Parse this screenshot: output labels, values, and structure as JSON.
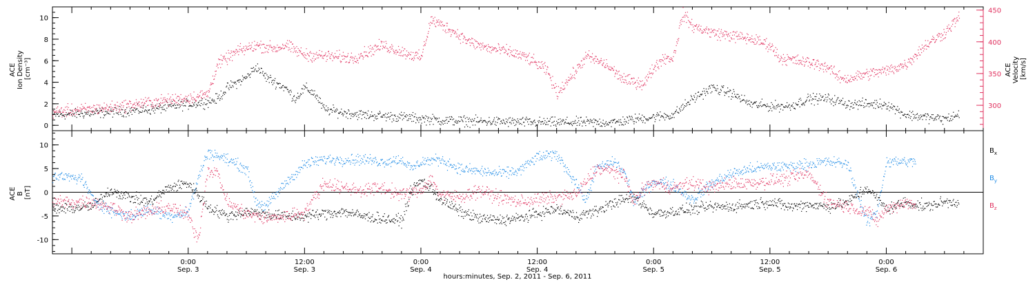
{
  "chart_data": [
    {
      "type": "scatter",
      "panel": "top",
      "left_axis": {
        "title_lines": [
          "ACE",
          "Ion Density",
          "[cm⁻³]"
        ],
        "ticks": [
          0,
          2,
          4,
          6,
          8,
          10
        ],
        "ylim": [
          -0.5,
          11.0
        ]
      },
      "right_axis": {
        "title_lines": [
          "ACE",
          "Velocity",
          "[km/s]"
        ],
        "ticks": [
          300,
          350,
          400,
          450
        ],
        "ylim": [
          260,
          455
        ],
        "color": "#e0305e"
      },
      "x_range_hours": [
        -14,
        82
      ],
      "series": [
        {
          "axis": "left",
          "color": "#000000",
          "anchors": [
            [
              -14,
              1.0
            ],
            [
              -9,
              1.2
            ],
            [
              -4,
              1.5
            ],
            [
              0,
              2.0
            ],
            [
              2,
              2.2
            ],
            [
              3,
              2.5
            ],
            [
              4,
              3.5
            ],
            [
              6,
              4.5
            ],
            [
              7,
              5.5
            ],
            [
              8,
              4.5
            ],
            [
              10,
              3.5
            ],
            [
              11,
              2.5
            ],
            [
              12,
              3.5
            ],
            [
              13,
              3.0
            ],
            [
              14,
              1.5
            ],
            [
              16,
              1.2
            ],
            [
              18,
              1.0
            ],
            [
              22,
              0.8
            ],
            [
              26,
              0.5
            ],
            [
              30,
              0.4
            ],
            [
              36,
              0.3
            ],
            [
              40,
              0.3
            ],
            [
              44,
              0.3
            ],
            [
              46,
              0.6
            ],
            [
              48,
              0.8
            ],
            [
              50,
              1.0
            ],
            [
              52,
              2.5
            ],
            [
              54,
              3.5
            ],
            [
              56,
              3.0
            ],
            [
              58,
              2.0
            ],
            [
              60,
              1.8
            ],
            [
              62,
              1.8
            ],
            [
              64,
              2.5
            ],
            [
              66,
              2.5
            ],
            [
              68,
              2.0
            ],
            [
              70,
              2.0
            ],
            [
              72,
              2.0
            ],
            [
              74,
              1.0
            ],
            [
              76,
              0.8
            ],
            [
              78,
              0.6
            ],
            [
              79.5,
              1.0
            ]
          ],
          "noise": 0.4
        },
        {
          "axis": "right",
          "color": "#e0305e",
          "anchors": [
            [
              -14,
              290
            ],
            [
              -8,
              297
            ],
            [
              -4,
              305
            ],
            [
              0,
              312
            ],
            [
              2,
              318
            ],
            [
              3,
              365
            ],
            [
              5,
              385
            ],
            [
              7,
              395
            ],
            [
              9,
              390
            ],
            [
              10,
              395
            ],
            [
              12,
              380
            ],
            [
              14,
              378
            ],
            [
              17,
              375
            ],
            [
              20,
              395
            ],
            [
              22,
              385
            ],
            [
              24,
              375
            ],
            [
              25,
              435
            ],
            [
              27,
              420
            ],
            [
              29,
              400
            ],
            [
              31,
              390
            ],
            [
              33,
              385
            ],
            [
              35,
              375
            ],
            [
              37,
              355
            ],
            [
              38,
              320
            ],
            [
              40,
              355
            ],
            [
              41,
              378
            ],
            [
              43,
              365
            ],
            [
              45,
              340
            ],
            [
              47,
              335
            ],
            [
              48,
              360
            ],
            [
              49,
              375
            ],
            [
              50,
              375
            ],
            [
              51,
              445
            ],
            [
              52,
              425
            ],
            [
              54,
              415
            ],
            [
              56,
              410
            ],
            [
              58,
              405
            ],
            [
              60,
              395
            ],
            [
              61,
              375
            ],
            [
              63,
              370
            ],
            [
              65,
              365
            ],
            [
              66,
              360
            ],
            [
              67,
              345
            ],
            [
              68,
              342
            ],
            [
              70,
              350
            ],
            [
              72,
              355
            ],
            [
              74,
              365
            ],
            [
              76,
              395
            ],
            [
              78,
              415
            ],
            [
              79.5,
              440
            ]
          ],
          "noise": 8
        }
      ]
    },
    {
      "type": "scatter",
      "panel": "bottom",
      "left_axis": {
        "title_lines": [
          "ACE",
          "B",
          "[nT]"
        ],
        "ticks": [
          -10,
          -5,
          0,
          5,
          10
        ],
        "ylim": [
          -13,
          13
        ]
      },
      "x_range_hours": [
        -14,
        82
      ],
      "zero_line": true,
      "xticks": [
        {
          "h": 0,
          "time": "0:00",
          "date": "Sep. 3"
        },
        {
          "h": 12,
          "time": "12:00",
          "date": "Sep. 3"
        },
        {
          "h": 24,
          "time": "0:00",
          "date": "Sep. 4"
        },
        {
          "h": 36,
          "time": "12:00",
          "date": "Sep. 4"
        },
        {
          "h": 48,
          "time": "0:00",
          "date": "Sep. 5"
        },
        {
          "h": 60,
          "time": "12:00",
          "date": "Sep. 5"
        },
        {
          "h": 72,
          "time": "0:00",
          "date": "Sep. 6"
        }
      ],
      "xlabel": "hours:minutes, Sep.  2, 2011 - Sep.  6, 2011",
      "series": [
        {
          "name": "Bx",
          "color": "#000000",
          "anchors": [
            [
              -14,
              -3.5
            ],
            [
              -10,
              -3.0
            ],
            [
              -8,
              0.5
            ],
            [
              -6,
              -1.0
            ],
            [
              -4,
              -2.0
            ],
            [
              -2,
              1.0
            ],
            [
              0,
              2.0
            ],
            [
              2,
              -3.0
            ],
            [
              4,
              -5.0
            ],
            [
              6,
              -4.0
            ],
            [
              8,
              -4.5
            ],
            [
              10,
              -5.0
            ],
            [
              12,
              -5.0
            ],
            [
              14,
              -4.5
            ],
            [
              16,
              -4.0
            ],
            [
              18,
              -5.0
            ],
            [
              20,
              -5.5
            ],
            [
              22,
              -6.0
            ],
            [
              23,
              0.5
            ],
            [
              24,
              2.5
            ],
            [
              25,
              1.0
            ],
            [
              26,
              -1.5
            ],
            [
              28,
              -4.0
            ],
            [
              30,
              -5.5
            ],
            [
              32,
              -5.8
            ],
            [
              34,
              -5.5
            ],
            [
              36,
              -4.5
            ],
            [
              38,
              -3.5
            ],
            [
              40,
              -5.0
            ],
            [
              42,
              -4.0
            ],
            [
              44,
              -2.0
            ],
            [
              46,
              -1.0
            ],
            [
              48,
              -4.5
            ],
            [
              50,
              -4.0
            ],
            [
              52,
              -3.5
            ],
            [
              54,
              -3.0
            ],
            [
              56,
              -3.0
            ],
            [
              58,
              -2.5
            ],
            [
              60,
              -2.0
            ],
            [
              62,
              -3.0
            ],
            [
              64,
              -2.5
            ],
            [
              66,
              -3.0
            ],
            [
              68,
              -2.0
            ],
            [
              70,
              1.0
            ],
            [
              72,
              -3.5
            ],
            [
              74,
              -2.0
            ],
            [
              76,
              -3.0
            ],
            [
              78,
              -2.0
            ],
            [
              79.5,
              -2.0
            ]
          ],
          "noise": 1.0
        },
        {
          "name": "By",
          "color": "#1e8be6",
          "anchors": [
            [
              -14,
              3.5
            ],
            [
              -11,
              3.0
            ],
            [
              -10,
              -1.0
            ],
            [
              -8,
              -4.0
            ],
            [
              -6,
              -5.0
            ],
            [
              -4,
              -3.5
            ],
            [
              -2,
              -5.0
            ],
            [
              0,
              -4.0
            ],
            [
              1,
              3.0
            ],
            [
              2,
              8.5
            ],
            [
              4,
              7.0
            ],
            [
              6,
              5.0
            ],
            [
              7,
              -2.0
            ],
            [
              8,
              -3.0
            ],
            [
              10,
              2.0
            ],
            [
              12,
              6.0
            ],
            [
              14,
              7.0
            ],
            [
              16,
              7.0
            ],
            [
              18,
              7.0
            ],
            [
              20,
              6.5
            ],
            [
              22,
              7.0
            ],
            [
              23,
              5.0
            ],
            [
              24,
              6.5
            ],
            [
              26,
              7.0
            ],
            [
              28,
              5.0
            ],
            [
              30,
              4.5
            ],
            [
              32,
              4.0
            ],
            [
              34,
              4.5
            ],
            [
              36,
              7.5
            ],
            [
              38,
              8.0
            ],
            [
              40,
              2.0
            ],
            [
              41,
              -2.0
            ],
            [
              42,
              5.0
            ],
            [
              44,
              6.5
            ],
            [
              45,
              4.0
            ],
            [
              46,
              -2.0
            ],
            [
              48,
              2.5
            ],
            [
              50,
              1.5
            ],
            [
              52,
              -1.5
            ],
            [
              54,
              2.0
            ],
            [
              56,
              4.0
            ],
            [
              58,
              5.0
            ],
            [
              60,
              5.5
            ],
            [
              62,
              5.5
            ],
            [
              64,
              6.0
            ],
            [
              66,
              6.5
            ],
            [
              68,
              6.0
            ],
            [
              70,
              -6.5
            ],
            [
              71,
              -4.0
            ],
            [
              72,
              6.5
            ],
            [
              74,
              6.5
            ],
            [
              75,
              6.5
            ]
          ],
          "noise": 1.0
        },
        {
          "name": "Bz",
          "color": "#e0305e",
          "anchors": [
            [
              -14,
              -2.0
            ],
            [
              -10,
              -2.0
            ],
            [
              -8,
              -3.0
            ],
            [
              -6,
              -5.0
            ],
            [
              -4,
              -4.0
            ],
            [
              -2,
              -3.0
            ],
            [
              0,
              -5.0
            ],
            [
              1,
              -10.0
            ],
            [
              2,
              5.0
            ],
            [
              3,
              4.0
            ],
            [
              4,
              -2.0
            ],
            [
              6,
              -4.5
            ],
            [
              8,
              -5.5
            ],
            [
              10,
              -5.0
            ],
            [
              12,
              -4.0
            ],
            [
              14,
              2.0
            ],
            [
              16,
              1.0
            ],
            [
              18,
              0.5
            ],
            [
              20,
              1.0
            ],
            [
              22,
              -0.5
            ],
            [
              24,
              0.5
            ],
            [
              25,
              3.0
            ],
            [
              26,
              -0.5
            ],
            [
              28,
              -1.0
            ],
            [
              30,
              0.5
            ],
            [
              32,
              -1.0
            ],
            [
              34,
              -2.0
            ],
            [
              36,
              -1.5
            ],
            [
              38,
              -1.0
            ],
            [
              40,
              -0.5
            ],
            [
              42,
              5.0
            ],
            [
              44,
              4.5
            ],
            [
              45,
              3.0
            ],
            [
              46,
              -2.0
            ],
            [
              47,
              1.0
            ],
            [
              48,
              2.0
            ],
            [
              50,
              1.0
            ],
            [
              52,
              2.0
            ],
            [
              54,
              1.0
            ],
            [
              56,
              2.0
            ],
            [
              58,
              2.0
            ],
            [
              60,
              2.5
            ],
            [
              62,
              3.0
            ],
            [
              64,
              4.0
            ],
            [
              66,
              -2.0
            ],
            [
              68,
              -3.0
            ],
            [
              70,
              -4.0
            ],
            [
              71,
              -6.0
            ],
            [
              72,
              -3.5
            ],
            [
              74,
              -2.0
            ],
            [
              75,
              -3.0
            ]
          ],
          "noise": 1.2
        }
      ],
      "legend": {
        "placement": "right",
        "items": [
          {
            "base": "B",
            "sub": "x",
            "color": "#000000"
          },
          {
            "base": "B",
            "sub": "y",
            "color": "#1e8be6"
          },
          {
            "base": "B",
            "sub": "z",
            "color": "#e0305e"
          }
        ]
      }
    }
  ]
}
